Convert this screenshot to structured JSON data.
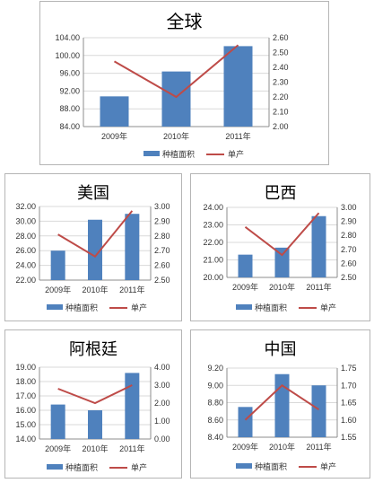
{
  "legend": {
    "bar_label": "种植面积",
    "line_label": "单产"
  },
  "colors": {
    "bar": "#4f81bd",
    "line": "#be4b48",
    "grid": "#d9d9d9",
    "axis": "#8c8c8c"
  },
  "chart_data": [
    {
      "type": "bar",
      "title": "全球",
      "categories": [
        "2009年",
        "2010年",
        "2011年"
      ],
      "series": [
        {
          "name": "种植面积",
          "kind": "bar",
          "axis": "left",
          "values": [
            90.8,
            96.4,
            102.1
          ]
        },
        {
          "name": "单产",
          "kind": "line",
          "axis": "right",
          "values": [
            2.44,
            2.2,
            2.55
          ]
        }
      ],
      "ylim_left": [
        84.0,
        104.0
      ],
      "yticks_left": [
        "84.00",
        "88.00",
        "92.00",
        "96.00",
        "100.00",
        "104.00"
      ],
      "ylim_right": [
        2.0,
        2.6
      ],
      "yticks_right": [
        "2.00",
        "2.10",
        "2.20",
        "2.30",
        "2.40",
        "2.50",
        "2.60"
      ],
      "grid": true,
      "legend_position": "bottom"
    },
    {
      "type": "bar",
      "title": "美国",
      "categories": [
        "2009年",
        "2010年",
        "2011年"
      ],
      "series": [
        {
          "name": "种植面积",
          "kind": "bar",
          "axis": "left",
          "values": [
            26.0,
            30.2,
            31.0
          ]
        },
        {
          "name": "单产",
          "kind": "line",
          "axis": "right",
          "values": [
            2.81,
            2.66,
            2.97
          ]
        }
      ],
      "ylim_left": [
        22.0,
        32.0
      ],
      "yticks_left": [
        "22.00",
        "24.00",
        "26.00",
        "28.00",
        "30.00",
        "32.00"
      ],
      "ylim_right": [
        2.5,
        3.0
      ],
      "yticks_right": [
        "2.50",
        "2.60",
        "2.70",
        "2.80",
        "2.90",
        "3.00"
      ],
      "grid": true,
      "legend_position": "bottom"
    },
    {
      "type": "bar",
      "title": "巴西",
      "categories": [
        "2009年",
        "2010年",
        "2011年"
      ],
      "series": [
        {
          "name": "种植面积",
          "kind": "bar",
          "axis": "left",
          "values": [
            21.3,
            21.7,
            23.5
          ]
        },
        {
          "name": "单产",
          "kind": "line",
          "axis": "right",
          "values": [
            2.86,
            2.66,
            2.96
          ]
        }
      ],
      "ylim_left": [
        20.0,
        24.0
      ],
      "yticks_left": [
        "20.00",
        "21.00",
        "22.00",
        "23.00",
        "24.00"
      ],
      "ylim_right": [
        2.5,
        3.0
      ],
      "yticks_right": [
        "2.50",
        "2.60",
        "2.70",
        "2.80",
        "2.90",
        "3.00"
      ],
      "grid": true,
      "legend_position": "bottom"
    },
    {
      "type": "bar",
      "title": "阿根廷",
      "categories": [
        "2009年",
        "2010年",
        "2011年"
      ],
      "series": [
        {
          "name": "种植面积",
          "kind": "bar",
          "axis": "left",
          "values": [
            16.4,
            16.0,
            18.6
          ]
        },
        {
          "name": "单产",
          "kind": "line",
          "axis": "right",
          "values": [
            2.8,
            2.0,
            3.0
          ]
        }
      ],
      "ylim_left": [
        14.0,
        19.0
      ],
      "yticks_left": [
        "14.00",
        "15.00",
        "16.00",
        "17.00",
        "18.00",
        "19.00"
      ],
      "ylim_right": [
        0.0,
        4.0
      ],
      "yticks_right": [
        "0.00",
        "1.00",
        "2.00",
        "3.00",
        "4.00"
      ],
      "grid": true,
      "legend_position": "bottom"
    },
    {
      "type": "bar",
      "title": "中国",
      "categories": [
        "2009年",
        "2010年",
        "2011年"
      ],
      "series": [
        {
          "name": "种植面积",
          "kind": "bar",
          "axis": "left",
          "values": [
            8.75,
            9.13,
            9.0
          ]
        },
        {
          "name": "单产",
          "kind": "line",
          "axis": "right",
          "values": [
            1.6,
            1.7,
            1.63
          ]
        }
      ],
      "ylim_left": [
        8.4,
        9.2
      ],
      "yticks_left": [
        "8.40",
        "8.60",
        "8.80",
        "9.00",
        "9.20"
      ],
      "ylim_right": [
        1.55,
        1.75
      ],
      "yticks_right": [
        "1.55",
        "1.60",
        "1.65",
        "1.70",
        "1.75"
      ],
      "grid": true,
      "legend_position": "bottom"
    }
  ]
}
